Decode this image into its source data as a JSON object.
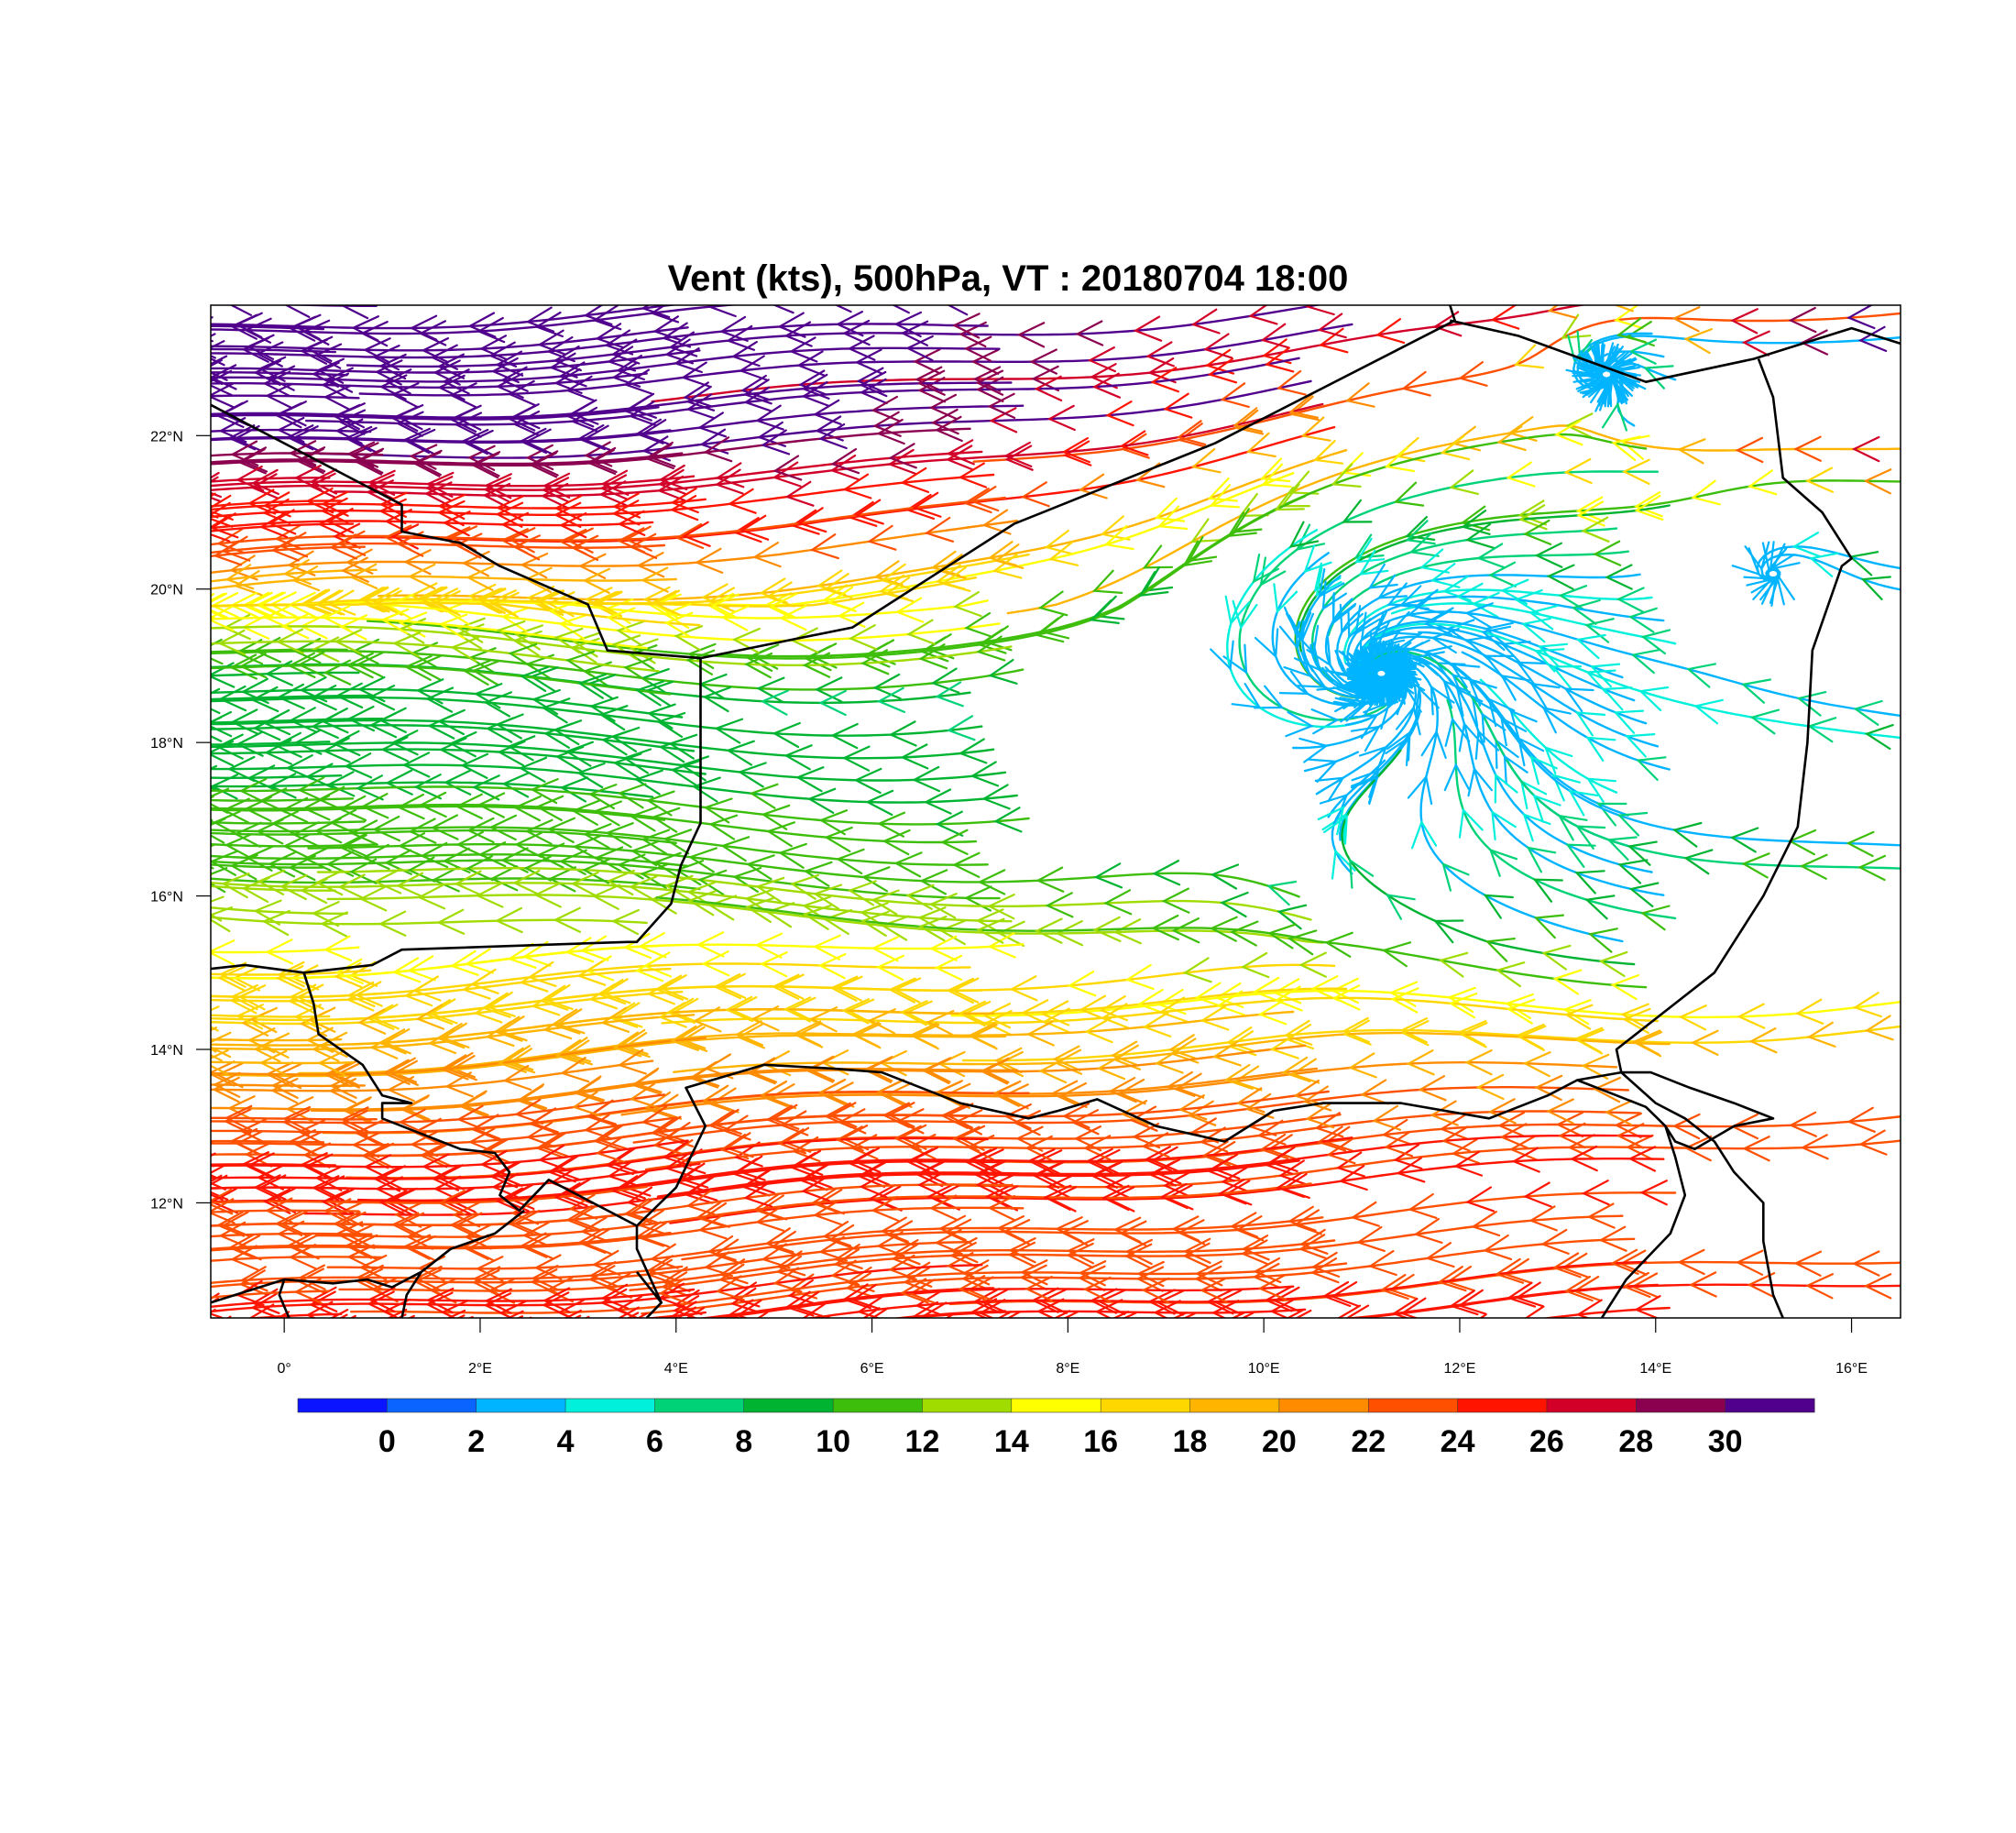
{
  "title": "Vent (kts), 500hPa, VT : 20180704  18:00",
  "map": {
    "lon_range": [
      -0.75,
      16.5
    ],
    "lat_range": [
      10.5,
      23.7
    ],
    "lon_ticks": [
      {
        "value": 0,
        "label": "0°"
      },
      {
        "value": 2,
        "label": "2°E"
      },
      {
        "value": 4,
        "label": "4°E"
      },
      {
        "value": 6,
        "label": "6°E"
      },
      {
        "value": 8,
        "label": "8°E"
      },
      {
        "value": 10,
        "label": "10°E"
      },
      {
        "value": 12,
        "label": "12°E"
      },
      {
        "value": 14,
        "label": "14°E"
      },
      {
        "value": 16,
        "label": "16°E"
      }
    ],
    "lat_ticks": [
      {
        "value": 12,
        "label": "12°N"
      },
      {
        "value": 14,
        "label": "14°N"
      },
      {
        "value": 16,
        "label": "16°N"
      },
      {
        "value": 18,
        "label": "18°N"
      },
      {
        "value": 20,
        "label": "20°N"
      },
      {
        "value": 22,
        "label": "22°N"
      }
    ],
    "borders": [
      [
        [
          -0.75,
          22.4
        ],
        [
          1.2,
          21.1
        ],
        [
          1.2,
          20.75
        ],
        [
          1.8,
          20.6
        ],
        [
          2.2,
          20.3
        ],
        [
          3.1,
          19.8
        ],
        [
          3.3,
          19.2
        ],
        [
          4.25,
          19.1
        ],
        [
          5.8,
          19.5
        ],
        [
          7.45,
          20.85
        ],
        [
          9.5,
          21.9
        ],
        [
          11.95,
          23.5
        ],
        [
          11.9,
          23.7
        ]
      ],
      [
        [
          4.25,
          19.1
        ],
        [
          4.25,
          16.95
        ],
        [
          4.05,
          16.4
        ],
        [
          3.95,
          15.9
        ],
        [
          3.6,
          15.4
        ],
        [
          3.5,
          15.4
        ],
        [
          1.2,
          15.3
        ],
        [
          0.9,
          15.1
        ],
        [
          0.2,
          15.0
        ],
        [
          -0.4,
          15.1
        ],
        [
          -0.75,
          15.05
        ]
      ],
      [
        [
          0.2,
          15.0
        ],
        [
          0.3,
          14.6
        ],
        [
          0.35,
          14.2
        ],
        [
          0.8,
          13.8
        ],
        [
          1.0,
          13.4
        ],
        [
          1.3,
          13.3
        ],
        [
          1.0,
          13.3
        ],
        [
          1.0,
          13.1
        ],
        [
          1.8,
          12.7
        ],
        [
          2.15,
          12.65
        ],
        [
          2.3,
          12.4
        ],
        [
          2.2,
          12.1
        ],
        [
          2.4,
          11.9
        ],
        [
          2.7,
          12.3
        ],
        [
          3.6,
          11.7
        ],
        [
          3.6,
          11.4
        ],
        [
          3.85,
          10.7
        ],
        [
          3.7,
          10.5
        ]
      ],
      [
        [
          3.6,
          11.7
        ],
        [
          4.0,
          12.2
        ],
        [
          4.3,
          13.0
        ],
        [
          4.1,
          13.5
        ],
        [
          4.9,
          13.8
        ],
        [
          5.6,
          13.75
        ],
        [
          6.1,
          13.7
        ],
        [
          6.9,
          13.3
        ],
        [
          7.6,
          13.1
        ],
        [
          7.9,
          13.2
        ],
        [
          8.3,
          13.35
        ],
        [
          8.9,
          13.0
        ],
        [
          9.6,
          12.8
        ],
        [
          10.1,
          13.2
        ],
        [
          10.6,
          13.3
        ],
        [
          11.4,
          13.3
        ],
        [
          12.3,
          13.1
        ],
        [
          12.9,
          13.4
        ],
        [
          13.2,
          13.6
        ],
        [
          13.65,
          13.7
        ]
      ],
      [
        [
          13.65,
          13.7
        ],
        [
          13.6,
          14.0
        ],
        [
          14.0,
          14.4
        ],
        [
          14.6,
          15.0
        ],
        [
          15.1,
          16.0
        ],
        [
          15.45,
          16.9
        ],
        [
          15.55,
          18.0
        ],
        [
          15.6,
          19.2
        ],
        [
          15.9,
          20.3
        ],
        [
          16.0,
          20.4
        ],
        [
          15.7,
          21.0
        ],
        [
          15.3,
          21.45
        ],
        [
          15.2,
          22.5
        ],
        [
          15.05,
          23.0
        ]
      ],
      [
        [
          11.9,
          23.5
        ],
        [
          12.6,
          23.3
        ],
        [
          13.25,
          23.0
        ],
        [
          13.9,
          22.7
        ],
        [
          15.0,
          23.0
        ],
        [
          16.0,
          23.4
        ],
        [
          16.5,
          23.2
        ]
      ],
      [
        [
          13.65,
          13.7
        ],
        [
          14.0,
          13.3
        ],
        [
          14.3,
          13.1
        ],
        [
          14.6,
          12.8
        ],
        [
          14.8,
          12.4
        ],
        [
          15.1,
          12.0
        ],
        [
          15.1,
          11.5
        ],
        [
          15.2,
          10.8
        ],
        [
          15.3,
          10.5
        ]
      ],
      [
        [
          13.2,
          13.6
        ],
        [
          13.6,
          13.4
        ],
        [
          13.9,
          13.25
        ],
        [
          14.1,
          13.0
        ],
        [
          14.2,
          12.8
        ],
        [
          14.4,
          12.7
        ],
        [
          14.8,
          13.0
        ],
        [
          15.2,
          13.1
        ],
        [
          14.8,
          13.3
        ],
        [
          14.35,
          13.5
        ],
        [
          13.95,
          13.7
        ],
        [
          13.65,
          13.7
        ]
      ],
      [
        [
          14.1,
          13.0
        ],
        [
          14.2,
          12.6
        ],
        [
          14.3,
          12.1
        ],
        [
          14.15,
          11.6
        ],
        [
          13.7,
          11.0
        ],
        [
          13.45,
          10.5
        ]
      ],
      [
        [
          -0.75,
          10.7
        ],
        [
          0.0,
          11.0
        ],
        [
          0.5,
          10.95
        ],
        [
          0.85,
          11.0
        ],
        [
          1.1,
          10.9
        ],
        [
          1.4,
          11.1
        ],
        [
          1.7,
          11.4
        ],
        [
          2.15,
          11.6
        ],
        [
          2.45,
          11.9
        ]
      ],
      [
        [
          0.0,
          11.0
        ],
        [
          -0.05,
          10.8
        ],
        [
          0.05,
          10.5
        ]
      ],
      [
        [
          1.4,
          11.1
        ],
        [
          1.25,
          10.8
        ],
        [
          1.2,
          10.5
        ]
      ],
      [
        [
          3.85,
          10.7
        ],
        [
          3.6,
          11.1
        ]
      ]
    ],
    "wind_field": {
      "centers": [
        {
          "lon": 11.2,
          "lat": 18.9,
          "radius_deg": 3.2,
          "speed": 2
        },
        {
          "lon": 15.2,
          "lat": 20.2,
          "radius_deg": 1.2,
          "speed": 2
        },
        {
          "lon": 13.5,
          "lat": 22.8,
          "radius_deg": 0.9,
          "speed": 3
        }
      ],
      "bands": [
        {
          "lat": 23.6,
          "speed": 30
        },
        {
          "lat": 22.5,
          "speed": 30
        },
        {
          "lat": 21.8,
          "speed": 30
        },
        {
          "lat": 21.2,
          "speed": 26
        },
        {
          "lat": 20.8,
          "speed": 25
        },
        {
          "lat": 20.3,
          "speed": 21
        },
        {
          "lat": 19.8,
          "speed": 16
        },
        {
          "lat": 19.2,
          "speed": 12
        },
        {
          "lat": 18.6,
          "speed": 8
        },
        {
          "lat": 18.0,
          "speed": 9
        },
        {
          "lat": 17.4,
          "speed": 10
        },
        {
          "lat": 16.8,
          "speed": 11
        },
        {
          "lat": 16.2,
          "speed": 12
        },
        {
          "lat": 15.6,
          "speed": 14
        },
        {
          "lat": 15.0,
          "speed": 16
        },
        {
          "lat": 14.4,
          "speed": 18
        },
        {
          "lat": 13.8,
          "speed": 20
        },
        {
          "lat": 13.2,
          "speed": 22
        },
        {
          "lat": 12.6,
          "speed": 24
        },
        {
          "lat": 12.0,
          "speed": 24
        },
        {
          "lat": 11.4,
          "speed": 23
        },
        {
          "lat": 10.8,
          "speed": 24
        },
        {
          "lat": 10.4,
          "speed": 25
        }
      ]
    }
  },
  "colorbar": {
    "labels": [
      "0",
      "2",
      "4",
      "6",
      "8",
      "10",
      "12",
      "14",
      "16",
      "18",
      "20",
      "22",
      "24",
      "26",
      "28",
      "30"
    ],
    "colors": [
      "#0a14ff",
      "#0a64ff",
      "#00b4ff",
      "#00f0dc",
      "#00d278",
      "#00b432",
      "#3cbe0a",
      "#a0dc00",
      "#ffff00",
      "#ffd700",
      "#ffb400",
      "#ff8c00",
      "#ff5000",
      "#ff1400",
      "#d20028",
      "#8c0050",
      "#50008c"
    ]
  }
}
